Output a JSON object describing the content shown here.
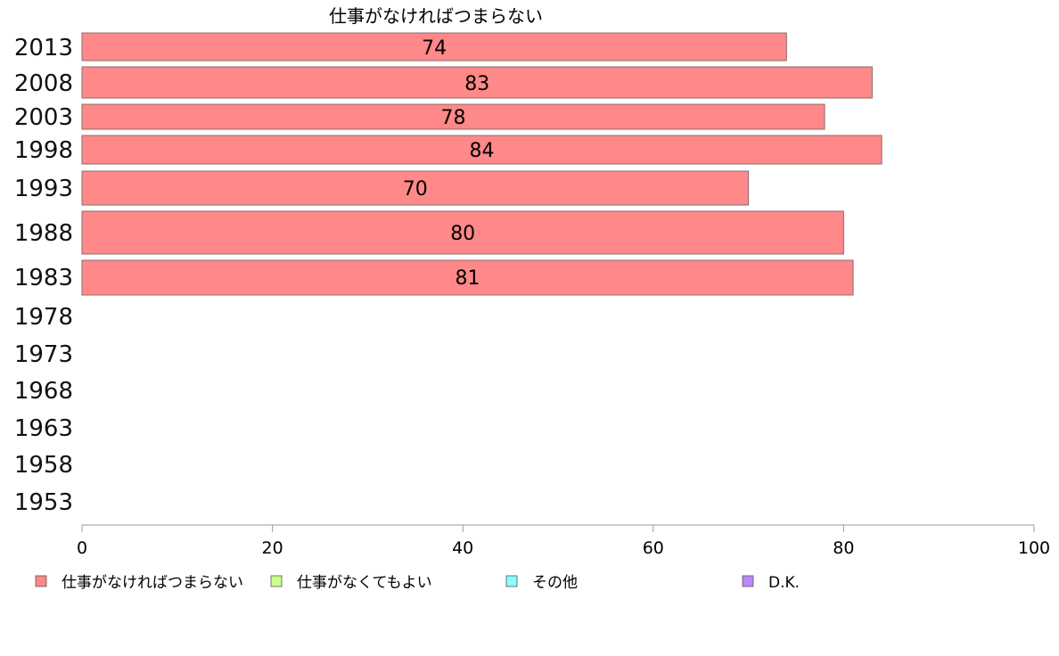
{
  "chart_data": {
    "type": "bar",
    "orientation": "horizontal",
    "title": "仕事がなければつまらない",
    "categories": [
      "2013",
      "2008",
      "2003",
      "1998",
      "1993",
      "1988",
      "1983",
      "1978",
      "1973",
      "1968",
      "1963",
      "1958",
      "1953"
    ],
    "series": [
      {
        "name": "仕事がなければつまらない",
        "color": "#ff8888",
        "values": [
          74,
          83,
          78,
          84,
          70,
          80,
          81,
          null,
          null,
          null,
          null,
          null,
          null
        ],
        "labels": [
          "74",
          "83",
          "78",
          "84",
          "70",
          "80",
          "81",
          "",
          "",
          "",
          "",
          "",
          ""
        ]
      }
    ],
    "xlim": [
      0,
      100
    ],
    "xticks": [
      0,
      20,
      40,
      60,
      80,
      100
    ],
    "xtick_labels": [
      "0",
      "20",
      "40",
      "60",
      "80",
      "100"
    ],
    "grid": false,
    "legend": {
      "placement": "bottom",
      "items": [
        {
          "label": "仕事がなければつまらない",
          "color": "#ff8888"
        },
        {
          "label": "仕事がなくてもよい",
          "color": "#ccff88"
        },
        {
          "label": "その他",
          "color": "#88ffff"
        },
        {
          "label": "D.K.",
          "color": "#bb88ff"
        }
      ]
    }
  }
}
